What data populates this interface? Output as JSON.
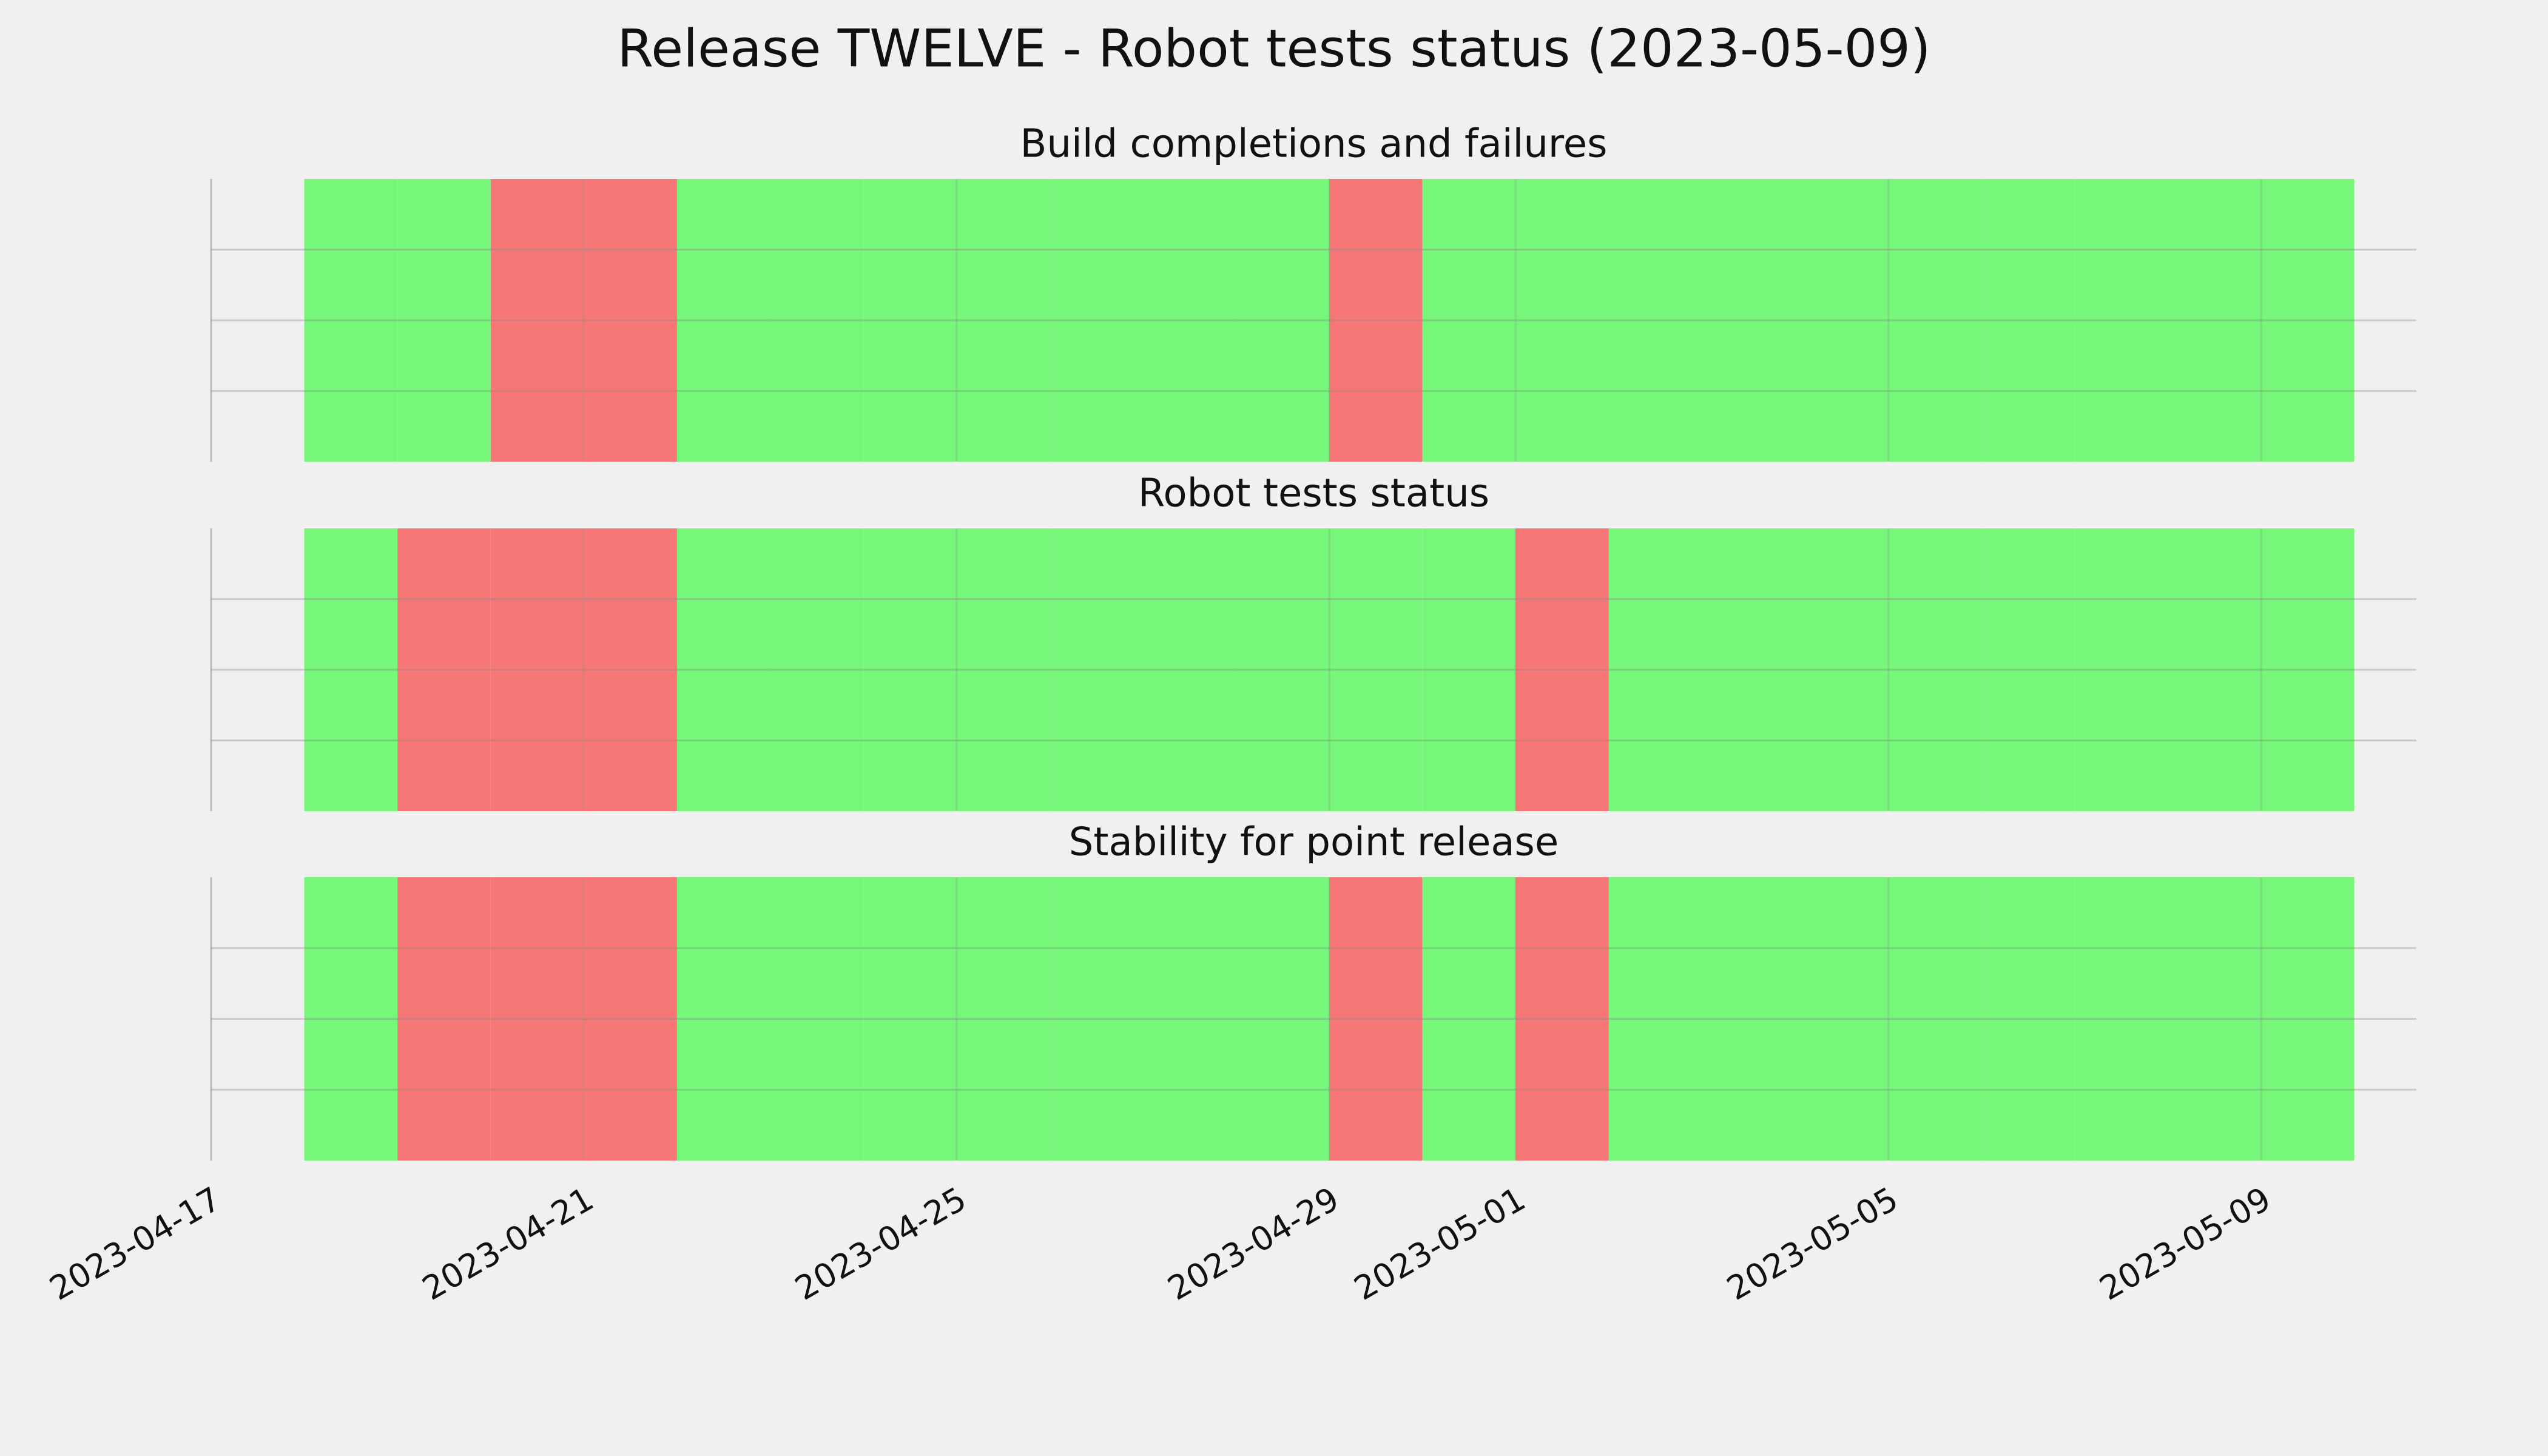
{
  "title": "Release TWELVE - Robot tests status (2023-05-09)",
  "chart_data": [
    {
      "type": "bar",
      "title": "Build completions and failures",
      "x": [
        "2023-04-18",
        "2023-04-19",
        "2023-04-20",
        "2023-04-21",
        "2023-04-22",
        "2023-04-23",
        "2023-04-24",
        "2023-04-25",
        "2023-04-26",
        "2023-04-27",
        "2023-04-28",
        "2023-04-29",
        "2023-04-30",
        "2023-05-01",
        "2023-05-02",
        "2023-05-03",
        "2023-05-04",
        "2023-05-05",
        "2023-05-06",
        "2023-05-07",
        "2023-05-08",
        "2023-05-09"
      ],
      "values": [
        1,
        1,
        1,
        1,
        1,
        1,
        1,
        1,
        1,
        1,
        1,
        1,
        1,
        1,
        1,
        1,
        1,
        1,
        1,
        1,
        1,
        1
      ],
      "colors": [
        "#76f77a",
        "#76f77a",
        "#f77777",
        "#f77777",
        "#76f77a",
        "#76f77a",
        "#76f77a",
        "#76f77a",
        "#76f77a",
        "#76f77a",
        "#76f77a",
        "#f77777",
        "#76f77a",
        "#76f77a",
        "#76f77a",
        "#76f77a",
        "#76f77a",
        "#76f77a",
        "#76f77a",
        "#76f77a",
        "#76f77a",
        "#76f77a"
      ],
      "xlim": [
        "2023-04-17",
        "2023-05-10T16:00Z"
      ],
      "xticks": [
        "2023-04-17",
        "2023-04-21",
        "2023-04-25",
        "2023-04-29",
        "2023-05-01",
        "2023-05-05",
        "2023-05-09"
      ],
      "ylim": [
        0,
        1
      ],
      "yticks": [
        0.25,
        0.5,
        0.75
      ],
      "grid": true
    },
    {
      "type": "bar",
      "title": "Robot tests status",
      "x": [
        "2023-04-18",
        "2023-04-19",
        "2023-04-20",
        "2023-04-21",
        "2023-04-22",
        "2023-04-23",
        "2023-04-24",
        "2023-04-25",
        "2023-04-26",
        "2023-04-27",
        "2023-04-28",
        "2023-04-29",
        "2023-04-30",
        "2023-05-01",
        "2023-05-02",
        "2023-05-03",
        "2023-05-04",
        "2023-05-05",
        "2023-05-06",
        "2023-05-07",
        "2023-05-08",
        "2023-05-09"
      ],
      "values": [
        1,
        1,
        1,
        1,
        1,
        1,
        1,
        1,
        1,
        1,
        1,
        1,
        1,
        1,
        1,
        1,
        1,
        1,
        1,
        1,
        1,
        1
      ],
      "colors": [
        "#76f77a",
        "#f77777",
        "#f77777",
        "#f77777",
        "#76f77a",
        "#76f77a",
        "#76f77a",
        "#76f77a",
        "#76f77a",
        "#76f77a",
        "#76f77a",
        "#76f77a",
        "#76f77a",
        "#f77777",
        "#76f77a",
        "#76f77a",
        "#76f77a",
        "#76f77a",
        "#76f77a",
        "#76f77a",
        "#76f77a",
        "#76f77a"
      ],
      "xlim": [
        "2023-04-17",
        "2023-05-10T16:00Z"
      ],
      "xticks": [
        "2023-04-17",
        "2023-04-21",
        "2023-04-25",
        "2023-04-29",
        "2023-05-01",
        "2023-05-05",
        "2023-05-09"
      ],
      "ylim": [
        0,
        1
      ],
      "yticks": [
        0.25,
        0.5,
        0.75
      ],
      "grid": true
    },
    {
      "type": "bar",
      "title": "Stability for point release",
      "x": [
        "2023-04-18",
        "2023-04-19",
        "2023-04-20",
        "2023-04-21",
        "2023-04-22",
        "2023-04-23",
        "2023-04-24",
        "2023-04-25",
        "2023-04-26",
        "2023-04-27",
        "2023-04-28",
        "2023-04-29",
        "2023-04-30",
        "2023-05-01",
        "2023-05-02",
        "2023-05-03",
        "2023-05-04",
        "2023-05-05",
        "2023-05-06",
        "2023-05-07",
        "2023-05-08",
        "2023-05-09"
      ],
      "values": [
        1,
        1,
        1,
        1,
        1,
        1,
        1,
        1,
        1,
        1,
        1,
        1,
        1,
        1,
        1,
        1,
        1,
        1,
        1,
        1,
        1,
        1
      ],
      "colors": [
        "#76f77a",
        "#f77777",
        "#f77777",
        "#f77777",
        "#76f77a",
        "#76f77a",
        "#76f77a",
        "#76f77a",
        "#76f77a",
        "#76f77a",
        "#76f77a",
        "#f77777",
        "#76f77a",
        "#f77777",
        "#76f77a",
        "#76f77a",
        "#76f77a",
        "#76f77a",
        "#76f77a",
        "#76f77a",
        "#76f77a",
        "#76f77a"
      ],
      "xlim": [
        "2023-04-17",
        "2023-05-10T16:00Z"
      ],
      "xticks": [
        "2023-04-17",
        "2023-04-21",
        "2023-04-25",
        "2023-04-29",
        "2023-05-01",
        "2023-05-05",
        "2023-05-09"
      ],
      "ylim": [
        0,
        1
      ],
      "yticks": [
        0.25,
        0.5,
        0.75
      ],
      "grid": true
    }
  ]
}
